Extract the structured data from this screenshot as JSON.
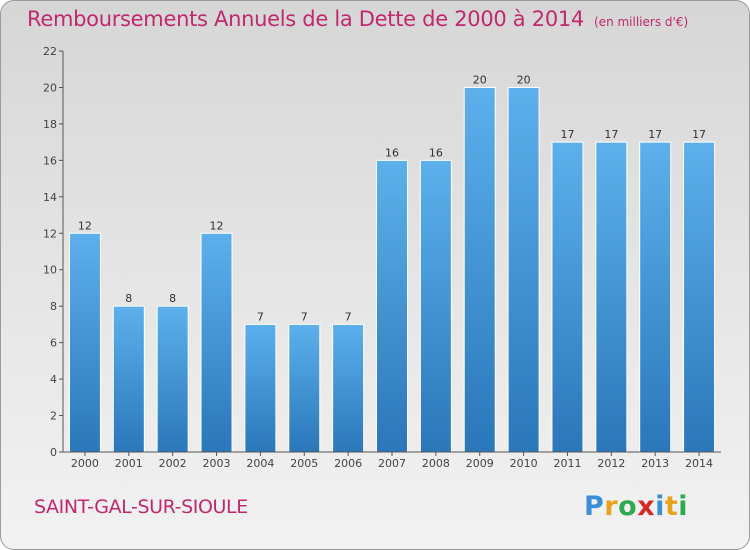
{
  "title": "Remboursements Annuels de la Dette de 2000 à 2014",
  "unit": "(en milliers d'€)",
  "commune": "SAINT-GAL-SUR-SIOULE",
  "logo": {
    "letters": [
      "P",
      "r",
      "o",
      "x",
      "i",
      "t",
      "i"
    ],
    "colors": [
      "#3a8fd4",
      "#e8a21c",
      "#2fa84f",
      "#d42a2a",
      "#3a8fd4",
      "#e8a21c",
      "#2fa84f"
    ]
  },
  "colors": {
    "bar_top": "#5db0ec",
    "bar_bottom": "#2a77b9",
    "title": "#c1286e"
  },
  "chart_data": {
    "type": "bar",
    "title": "Remboursements Annuels de la Dette de 2000 à 2014",
    "xlabel": "",
    "ylabel": "",
    "ylim": [
      0,
      22
    ],
    "yticks": [
      0,
      2,
      4,
      6,
      8,
      10,
      12,
      14,
      16,
      18,
      20,
      22
    ],
    "categories": [
      "2000",
      "2001",
      "2002",
      "2003",
      "2004",
      "2005",
      "2006",
      "2007",
      "2008",
      "2009",
      "2010",
      "2011",
      "2012",
      "2013",
      "2014"
    ],
    "values": [
      12,
      8,
      8,
      12,
      7,
      7,
      7,
      16,
      16,
      20,
      20,
      17,
      17,
      17,
      17
    ],
    "data_labels": true,
    "grid": false,
    "legend": "none"
  }
}
